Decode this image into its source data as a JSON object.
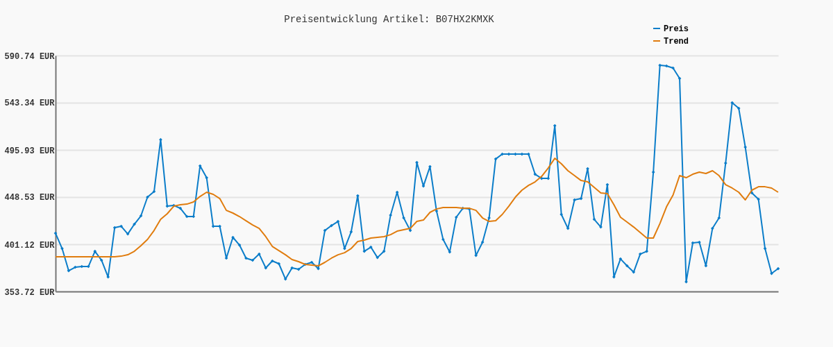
{
  "chart_data": {
    "type": "line",
    "title": "Preisentwicklung Artikel: B07HX2KMXK",
    "categories": [
      null,
      null,
      null,
      null,
      null,
      null,
      null,
      null,
      null,
      null,
      null,
      null,
      null,
      null,
      null,
      null,
      null,
      null,
      null,
      null,
      null,
      null,
      null,
      null,
      null,
      null,
      null,
      null,
      null,
      null,
      null,
      null,
      null,
      null,
      null,
      null,
      null,
      null,
      null,
      null,
      null,
      null,
      null,
      null,
      null,
      null,
      null,
      null,
      null,
      null,
      null,
      null,
      null,
      null,
      null,
      null,
      null,
      null,
      null,
      null,
      null,
      null,
      null,
      null,
      null,
      null,
      null,
      null,
      null,
      null,
      null,
      null,
      null,
      null,
      null,
      null,
      null,
      null,
      null,
      null,
      null,
      null,
      null,
      null,
      null,
      null,
      null,
      null,
      null,
      null,
      null,
      null,
      null,
      null,
      null,
      null,
      null,
      null,
      null,
      null,
      null,
      null,
      null,
      null,
      null,
      null,
      null,
      null,
      null,
      null,
      null
    ],
    "series": [
      {
        "name": "Preis",
        "color": "#0b7dc9",
        "marker": "diamond",
        "values": [
          412.2,
          396.9,
          374.6,
          378.1,
          378.8,
          378.8,
          394.1,
          385.1,
          368.3,
          417.8,
          419.2,
          411.5,
          421.3,
          429.7,
          448.5,
          454.1,
          506.3,
          439.4,
          440.1,
          437.3,
          429.0,
          429.0,
          479.9,
          468.0,
          419.2,
          419.2,
          387.2,
          408.1,
          400.4,
          387.2,
          385.1,
          391.3,
          377.4,
          384.4,
          381.6,
          366.2,
          377.4,
          376.0,
          380.9,
          383.0,
          376.7,
          415.0,
          419.9,
          424.1,
          396.9,
          413.6,
          449.9,
          394.1,
          398.3,
          387.8,
          394.1,
          430.4,
          453.4,
          427.6,
          415.0,
          483.3,
          459.6,
          479.2,
          434.5,
          406.0,
          393.4,
          428.3,
          437.3,
          436.6,
          389.9,
          403.2,
          427.6,
          486.8,
          491.7,
          491.7,
          491.7,
          491.7,
          491.7,
          471.5,
          467.3,
          467.3,
          520.3,
          431.1,
          417.1,
          445.7,
          447.1,
          477.1,
          426.2,
          418.5,
          461.0,
          368.3,
          386.4,
          379.5,
          373.2,
          391.3,
          394.1,
          473.6,
          580.9,
          580.3,
          578.2,
          567.7,
          363.4,
          402.5,
          403.2,
          379.5,
          417.1,
          427.6,
          482.6,
          543.3,
          537.7,
          498.7,
          452.7,
          446.4,
          396.9,
          371.8,
          376.7
        ]
      },
      {
        "name": "Trend",
        "color": "#e07c0e",
        "marker": "none",
        "values": [
          388.5,
          388.5,
          388.5,
          388.5,
          388.5,
          388.5,
          388.5,
          388.5,
          388.5,
          388.5,
          389.2,
          390.6,
          394.1,
          399.7,
          406.0,
          415.0,
          426.2,
          431.8,
          439.4,
          440.8,
          441.5,
          443.6,
          449.2,
          453.4,
          451.3,
          447.1,
          435.2,
          432.5,
          429.0,
          424.8,
          420.6,
          417.1,
          408.8,
          399.0,
          394.8,
          390.6,
          385.8,
          383.7,
          380.9,
          380.2,
          379.5,
          383.0,
          387.2,
          390.6,
          392.7,
          396.9,
          403.9,
          405.3,
          407.4,
          408.1,
          408.8,
          410.8,
          414.3,
          415.7,
          417.1,
          424.1,
          425.5,
          433.2,
          436.6,
          438.0,
          438.0,
          438.0,
          437.3,
          437.3,
          435.2,
          427.6,
          424.1,
          424.8,
          431.1,
          439.4,
          448.5,
          455.5,
          460.3,
          463.8,
          469.4,
          477.8,
          487.5,
          482.0,
          475.0,
          470.1,
          465.2,
          463.8,
          458.3,
          452.7,
          452.0,
          440.8,
          428.3,
          423.4,
          418.5,
          412.9,
          407.4,
          407.4,
          422.0,
          438.7,
          450.6,
          470.1,
          468.0,
          471.5,
          473.6,
          472.2,
          475.0,
          470.1,
          461.0,
          457.6,
          453.4,
          445.7,
          455.5,
          458.9,
          458.9,
          457.6,
          453.4
        ]
      }
    ],
    "ylim": [
      353.72,
      590.74
    ],
    "yticks": [
      {
        "value": 353.72,
        "label": "353.72 EUR"
      },
      {
        "value": 401.12,
        "label": "401.12 EUR"
      },
      {
        "value": 448.53,
        "label": "448.53 EUR"
      },
      {
        "value": 495.93,
        "label": "495.93 EUR"
      },
      {
        "value": 543.34,
        "label": "543.34 EUR"
      },
      {
        "value": 590.74,
        "label": "590.74 EUR"
      }
    ],
    "grid": "y",
    "legend": "top right",
    "tick_labels": "y",
    "line_style": "solid"
  }
}
